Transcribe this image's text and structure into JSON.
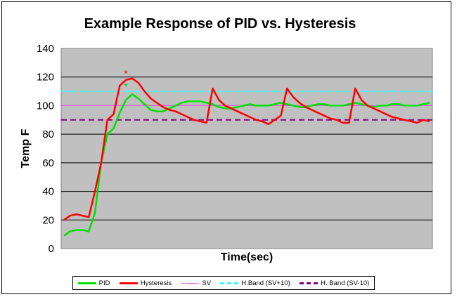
{
  "chart_data": {
    "type": "line",
    "title": "Example Response of PID vs. Hysteresis",
    "xlabel": "Time(sec)",
    "ylabel": "Temp F",
    "ylim": [
      0,
      140
    ],
    "yticks": [
      "0",
      "20",
      "40",
      "60",
      "80",
      "100",
      "120",
      "140"
    ],
    "grid": true,
    "legend_position": "bottom",
    "markers": [
      "*",
      "*"
    ],
    "marker_colors": [
      "#ff0000",
      "#00cc00"
    ],
    "marker_y": [
      124,
      115
    ],
    "marker_x_index": 10,
    "series": [
      {
        "name": "PID",
        "color": "#00e000",
        "style": "solid",
        "values": [
          9,
          12,
          13,
          13,
          12,
          25,
          60,
          80,
          84,
          95,
          104,
          108,
          105,
          101,
          97,
          96,
          96,
          98,
          100,
          102,
          103,
          103,
          103,
          102,
          101,
          99,
          98,
          98,
          99,
          100,
          101,
          100,
          100,
          100,
          101,
          102,
          101,
          100,
          99,
          99,
          100,
          101,
          101,
          100,
          100,
          100,
          101,
          102,
          101,
          100,
          99,
          100,
          100,
          101,
          101,
          100,
          100,
          100,
          101,
          102
        ]
      },
      {
        "name": "Hysteresis",
        "color": "#ff0000",
        "style": "solid",
        "values": [
          20,
          23,
          24,
          23,
          22,
          40,
          60,
          90,
          94,
          114,
          118,
          119,
          116,
          110,
          105,
          102,
          99,
          97,
          96,
          94,
          92,
          90,
          89,
          88,
          112,
          104,
          100,
          98,
          96,
          94,
          92,
          90,
          89,
          87,
          90,
          93,
          112,
          106,
          102,
          99,
          97,
          95,
          93,
          91,
          90,
          88,
          88,
          112,
          104,
          100,
          98,
          96,
          94,
          92,
          91,
          90,
          89,
          88,
          90,
          89
        ]
      },
      {
        "name": "SV",
        "color": "#ff66ff",
        "style": "solid",
        "constant": 100
      },
      {
        "name": "H.Band (SV+10)",
        "color": "#33ffff",
        "style": "dashed",
        "constant": 110
      },
      {
        "name": "H. Band (SV-10)",
        "color": "#800080",
        "style": "dashed",
        "constant": 90
      }
    ]
  }
}
